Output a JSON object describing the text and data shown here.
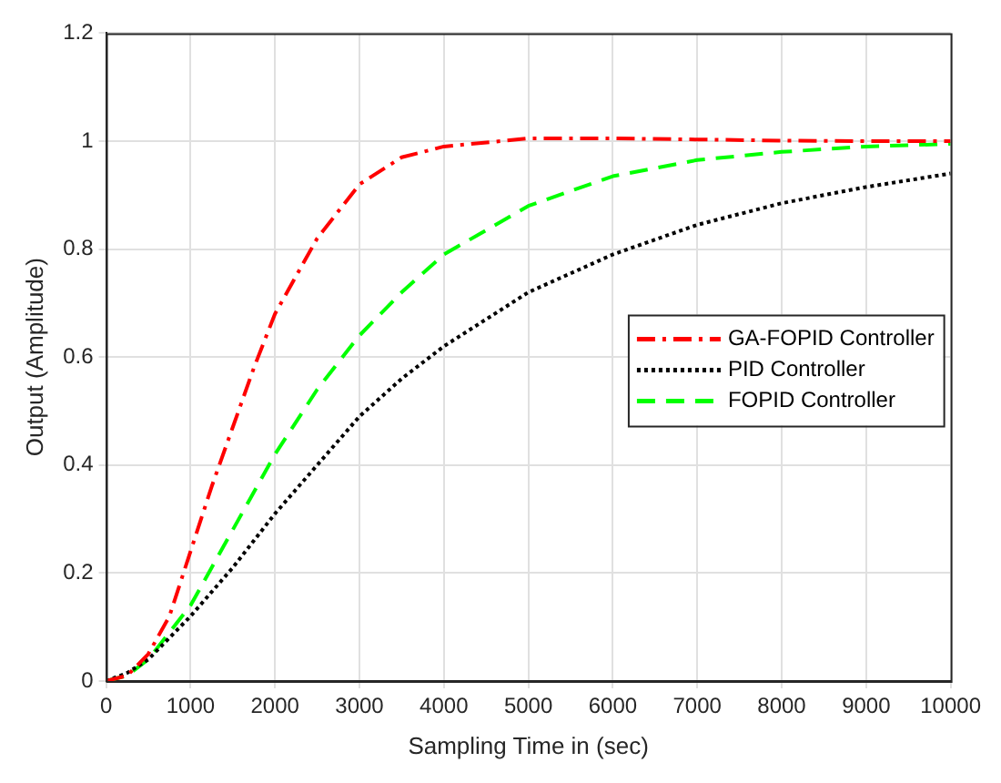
{
  "chart_data": {
    "type": "line",
    "xlabel": "Sampling Time in (sec)",
    "ylabel": "Output (Amplitude)",
    "x": [
      0,
      250,
      500,
      750,
      1000,
      1250,
      1500,
      1750,
      2000,
      2500,
      3000,
      3500,
      4000,
      5000,
      6000,
      7000,
      8000,
      9000,
      10000
    ],
    "series": [
      {
        "name": "GA-FOPID Controller",
        "color": "#ff0000",
        "line_style": "dashdot",
        "values": [
          0,
          0.01,
          0.05,
          0.12,
          0.24,
          0.36,
          0.47,
          0.58,
          0.68,
          0.82,
          0.92,
          0.97,
          0.99,
          1.005,
          1.005,
          1.003,
          1.001,
          1.0,
          1.0
        ]
      },
      {
        "name": "PID Controller",
        "color": "#000000",
        "line_style": "dotted",
        "values": [
          0,
          0.015,
          0.04,
          0.08,
          0.12,
          0.165,
          0.21,
          0.26,
          0.31,
          0.4,
          0.49,
          0.56,
          0.62,
          0.72,
          0.79,
          0.845,
          0.885,
          0.915,
          0.94
        ]
      },
      {
        "name": "FOPID Controller",
        "color": "#00ff00",
        "line_style": "dashed",
        "values": [
          0,
          0.01,
          0.04,
          0.09,
          0.14,
          0.21,
          0.28,
          0.35,
          0.42,
          0.54,
          0.64,
          0.72,
          0.79,
          0.88,
          0.935,
          0.965,
          0.98,
          0.99,
          0.995
        ]
      }
    ],
    "xlim": [
      0,
      10000
    ],
    "xticks": [
      0,
      1000,
      2000,
      3000,
      4000,
      5000,
      6000,
      7000,
      8000,
      9000,
      10000
    ],
    "ylim": [
      0,
      1.2
    ],
    "yticks": [
      0,
      0.2,
      0.4,
      0.6,
      0.8,
      1,
      1.2
    ],
    "grid": true,
    "legend": "right",
    "marker": "none"
  }
}
